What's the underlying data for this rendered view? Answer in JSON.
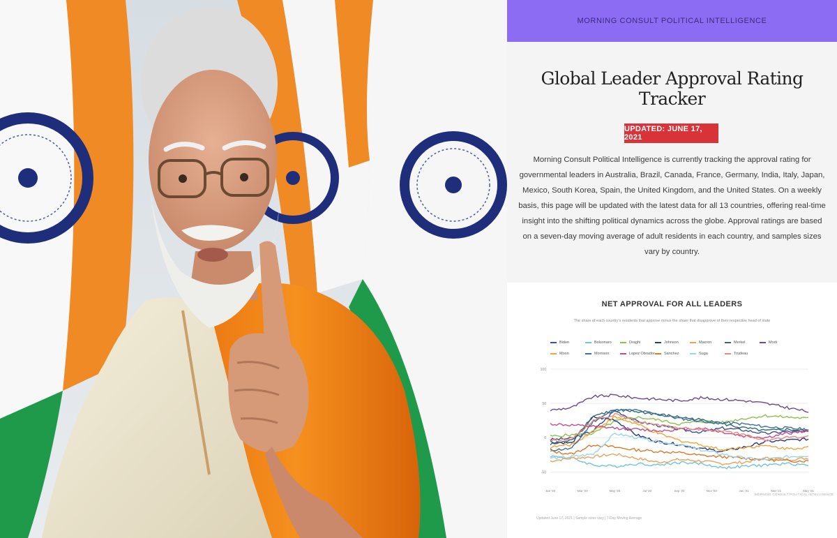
{
  "banner": {
    "text": "MORNING CONSULT POLITICAL INTELLIGENCE"
  },
  "headline": "Global Leader Approval Rating Tracker",
  "updated_badge": "UPDATED: JUNE 17, 2021",
  "intro": "Morning Consult Political Intelligence is currently tracking the approval rating for governmental leaders in Australia, Brazil, Canada, France, Germany, India, Italy, Japan, Mexico, South Korea, Spain, the United Kingdom, and the United States. On a weekly basis, this page will be updated with the latest data for all 13 countries, offering real-time insight into the shifting political dynamics across the globe. Approval ratings are based on a seven-day moving average of adult residents in each country, and samples sizes vary by country.",
  "colors": {
    "banner": "#8c6cf2",
    "badge": "#d9333a",
    "saffron": "#f08a24",
    "flag_green": "#1f9a4a",
    "chakra": "#1e2e7a"
  },
  "chart_data": {
    "type": "line",
    "title": "NET APPROVAL FOR ALL LEADERS",
    "subtitle": "The share of each country's residents that approve minus the share that disapprove of their respective head of state",
    "source": "MORNING CONSULT POLITICAL INTELLIGENCE",
    "footnote": "Updated June 17, 2021 | Sample sizes vary | 7-Day Moving Average",
    "ytick_labels": [
      "100",
      "50",
      "0",
      "-50"
    ],
    "ylim": [
      -65,
      100
    ],
    "xtick_labels": [
      "Jan '20",
      "Mar '20",
      "May '20",
      "Jul '20",
      "Sep '20",
      "Nov '20",
      "Jan '21",
      "Mar '21",
      "May '21"
    ],
    "grid": true,
    "legend_position": "top",
    "series": [
      {
        "name": "Biden",
        "color": "#3c4f9c",
        "values": [
          -3,
          -1,
          10,
          40,
          24,
          18,
          12,
          8,
          14,
          11,
          6,
          9,
          8
        ]
      },
      {
        "name": "Bolsonaro",
        "color": "#6fc3df",
        "values": [
          -27,
          -30,
          -40,
          -42,
          -38,
          -40,
          -36,
          -38,
          -44,
          -42,
          -40,
          -38,
          -40
        ]
      },
      {
        "name": "Draghi",
        "color": "#8cc24c",
        "values": [
          2,
          4,
          6,
          24,
          30,
          26,
          20,
          24,
          22,
          28,
          32,
          30,
          28
        ]
      },
      {
        "name": "Johnson",
        "color": "#2b3a80",
        "values": [
          -6,
          -8,
          30,
          26,
          4,
          -6,
          -10,
          -16,
          -20,
          -14,
          -6,
          -4,
          -2
        ]
      },
      {
        "name": "Macron",
        "color": "#e7a35c",
        "values": [
          -34,
          -30,
          -28,
          -24,
          -30,
          -36,
          -32,
          -34,
          -38,
          -36,
          -30,
          -32,
          -30
        ]
      },
      {
        "name": "Merkel",
        "color": "#2f6d6a",
        "values": [
          -10,
          -4,
          32,
          40,
          38,
          34,
          30,
          26,
          20,
          14,
          10,
          12,
          10
        ]
      },
      {
        "name": "Modi",
        "color": "#6a4a8c",
        "values": [
          40,
          44,
          60,
          62,
          58,
          56,
          54,
          58,
          56,
          54,
          50,
          44,
          38
        ]
      },
      {
        "name": "Moon",
        "color": "#f2a53a",
        "values": [
          -14,
          -10,
          10,
          30,
          20,
          6,
          -4,
          -10,
          -18,
          -14,
          -12,
          -16,
          -14
        ]
      },
      {
        "name": "Morrison",
        "color": "#3c6f9f",
        "values": [
          -18,
          -16,
          24,
          40,
          40,
          34,
          28,
          24,
          22,
          20,
          16,
          14,
          12
        ]
      },
      {
        "name": "Lopez Obrador",
        "color": "#c74b8a",
        "values": [
          20,
          18,
          16,
          14,
          12,
          10,
          12,
          14,
          8,
          2,
          0,
          6,
          10
        ]
      },
      {
        "name": "Sanchez",
        "color": "#d97a2b",
        "values": [
          -20,
          -24,
          -10,
          -14,
          -18,
          -20,
          -22,
          -26,
          -28,
          -30,
          -32,
          -34,
          -34
        ]
      },
      {
        "name": "Suga",
        "color": "#9ad6e6",
        "values": [
          -30,
          -28,
          -24,
          6,
          0,
          -6,
          -10,
          -18,
          -24,
          -30,
          -32,
          -28,
          -26
        ]
      },
      {
        "name": "Trudeau",
        "color": "#e9897a",
        "values": [
          -4,
          -2,
          26,
          34,
          24,
          18,
          14,
          12,
          10,
          4,
          -4,
          0,
          2
        ]
      }
    ]
  }
}
